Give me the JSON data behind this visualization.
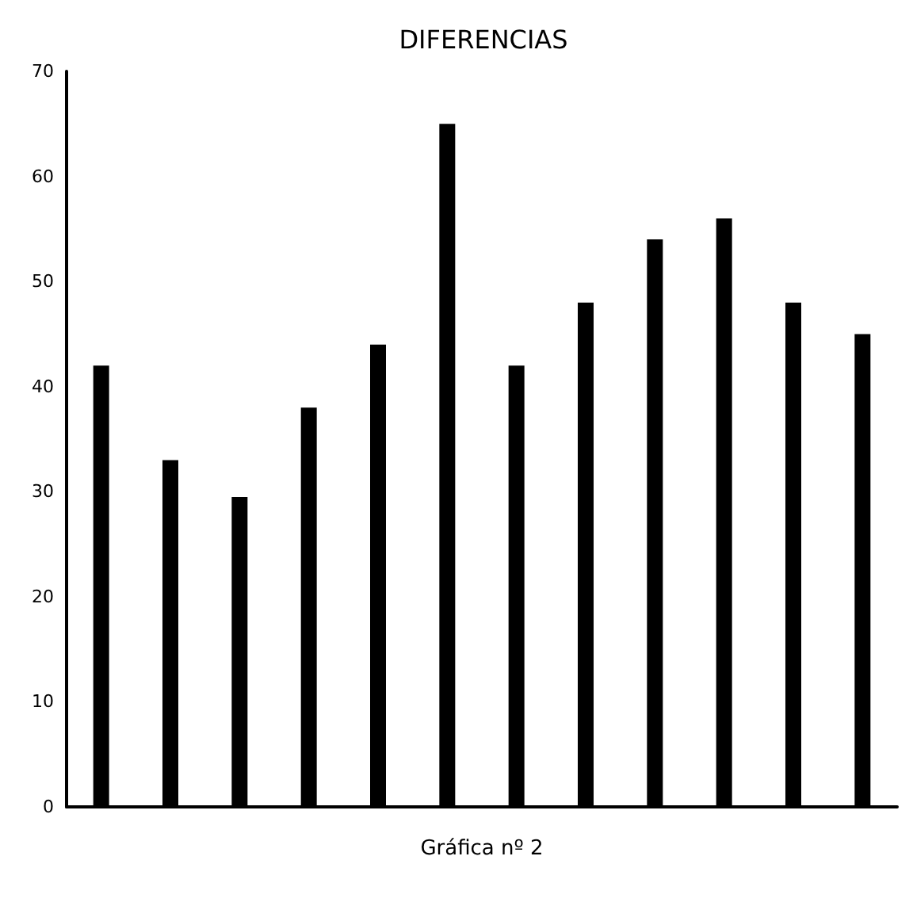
{
  "chart_data": {
    "type": "bar",
    "title": "DIFERENCIAS",
    "xlabel": "Gráfica nº 2",
    "categories": [
      null,
      null,
      null,
      null,
      null,
      null,
      null,
      null,
      null,
      null,
      null,
      null
    ],
    "values": [
      42,
      33,
      29.5,
      38,
      44,
      65,
      42,
      48,
      54,
      56,
      48,
      45
    ],
    "color": "#000000",
    "ylim": [
      0,
      70
    ],
    "yticks": [
      0,
      10,
      20,
      30,
      40,
      50,
      60,
      70
    ],
    "grid": false
  }
}
